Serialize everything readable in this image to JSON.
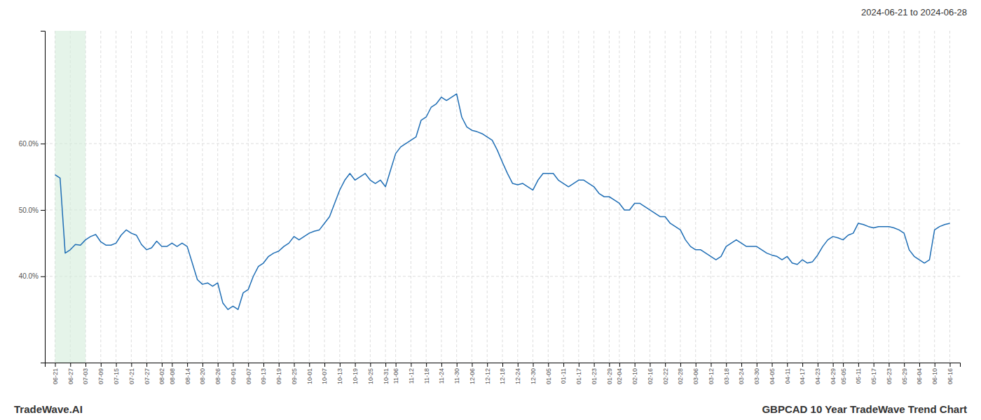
{
  "chart_data": {
    "type": "line",
    "title": "GBPCAD 10 Year TradeWave Trend Chart",
    "subtitle": "2024-06-21 to 2024-06-28",
    "annotations": [
      "TradeWave.AI"
    ],
    "color": "#1f6eb5",
    "grid": true,
    "highlight": {
      "from": "06-21",
      "to": "07-03",
      "color": "#d4edda"
    },
    "ylim": [
      0.27,
      0.77
    ],
    "yticks": [
      {
        "value": 0.4,
        "label": "40.0%"
      },
      {
        "value": 0.5,
        "label": "50.0%"
      },
      {
        "value": 0.6,
        "label": "60.0%"
      }
    ],
    "categories": [
      "06-21",
      null,
      null,
      "06-27",
      null,
      null,
      "07-03",
      null,
      null,
      "07-09",
      null,
      null,
      "07-15",
      null,
      null,
      "07-21",
      null,
      null,
      "07-27",
      null,
      null,
      "08-02",
      null,
      "08-08",
      null,
      null,
      "08-14",
      null,
      null,
      "08-20",
      null,
      null,
      "08-26",
      null,
      null,
      "09-01",
      null,
      null,
      "09-07",
      null,
      null,
      "09-13",
      null,
      null,
      "09-19",
      null,
      null,
      "09-25",
      null,
      null,
      "10-01",
      null,
      null,
      "10-07",
      null,
      null,
      "10-13",
      null,
      null,
      "10-19",
      null,
      null,
      "10-25",
      null,
      null,
      "10-31",
      null,
      "11-06",
      null,
      null,
      "11-12",
      null,
      null,
      "11-18",
      null,
      null,
      "11-24",
      null,
      null,
      "11-30",
      null,
      null,
      "12-06",
      null,
      null,
      "12-12",
      null,
      null,
      "12-18",
      null,
      null,
      "12-24",
      null,
      null,
      "12-30",
      null,
      null,
      "01-05",
      null,
      null,
      "01-11",
      null,
      null,
      "01-17",
      null,
      null,
      "01-23",
      null,
      null,
      "01-29",
      null,
      "02-04",
      null,
      null,
      "02-10",
      null,
      null,
      "02-16",
      null,
      null,
      "02-22",
      null,
      null,
      "02-28",
      null,
      null,
      "03-06",
      null,
      null,
      "03-12",
      null,
      null,
      "03-18",
      null,
      null,
      "03-24",
      null,
      null,
      "03-30",
      null,
      null,
      "04-05",
      null,
      null,
      "04-11",
      null,
      null,
      "04-17",
      null,
      null,
      "04-23",
      null,
      null,
      "04-29",
      null,
      "05-05",
      null,
      null,
      "05-11",
      null,
      null,
      "05-17",
      null,
      null,
      "05-23",
      null,
      null,
      "05-29",
      null,
      null,
      "06-04",
      null,
      null,
      "06-10",
      null,
      null,
      "06-16"
    ],
    "values": [
      0.553,
      0.548,
      0.435,
      0.44,
      0.448,
      0.447,
      0.455,
      0.46,
      0.463,
      0.452,
      0.447,
      0.447,
      0.45,
      0.462,
      0.47,
      0.465,
      0.462,
      0.448,
      0.44,
      0.443,
      0.453,
      0.445,
      0.445,
      0.45,
      0.445,
      0.45,
      0.445,
      0.42,
      0.395,
      0.388,
      0.39,
      0.385,
      0.39,
      0.36,
      0.35,
      0.355,
      0.35,
      0.375,
      0.38,
      0.4,
      0.415,
      0.42,
      0.43,
      0.435,
      0.438,
      0.445,
      0.45,
      0.46,
      0.455,
      0.46,
      0.465,
      0.468,
      0.47,
      0.48,
      0.49,
      0.51,
      0.53,
      0.545,
      0.555,
      0.545,
      0.55,
      0.555,
      0.545,
      0.54,
      0.545,
      0.535,
      0.56,
      0.585,
      0.595,
      0.6,
      0.605,
      0.61,
      0.635,
      0.64,
      0.655,
      0.66,
      0.67,
      0.665,
      0.67,
      0.675,
      0.64,
      0.625,
      0.62,
      0.618,
      0.615,
      0.61,
      0.605,
      0.59,
      0.572,
      0.555,
      0.54,
      0.538,
      0.54,
      0.535,
      0.53,
      0.545,
      0.555,
      0.555,
      0.555,
      0.545,
      0.54,
      0.535,
      0.54,
      0.545,
      0.545,
      0.54,
      0.535,
      0.525,
      0.52,
      0.52,
      0.515,
      0.51,
      0.5,
      0.5,
      0.51,
      0.51,
      0.505,
      0.5,
      0.495,
      0.49,
      0.49,
      0.48,
      0.475,
      0.47,
      0.455,
      0.445,
      0.44,
      0.44,
      0.435,
      0.43,
      0.425,
      0.43,
      0.445,
      0.45,
      0.455,
      0.45,
      0.445,
      0.445,
      0.445,
      0.44,
      0.435,
      0.432,
      0.43,
      0.425,
      0.43,
      0.42,
      0.418,
      0.425,
      0.42,
      0.422,
      0.432,
      0.445,
      0.455,
      0.46,
      0.458,
      0.455,
      0.462,
      0.465,
      0.48,
      0.478,
      0.475,
      0.473,
      0.475,
      0.475,
      0.475,
      0.473,
      0.47,
      0.465,
      0.44,
      0.43,
      0.425,
      0.42,
      0.425,
      0.47,
      0.475,
      0.478,
      0.48
    ]
  }
}
